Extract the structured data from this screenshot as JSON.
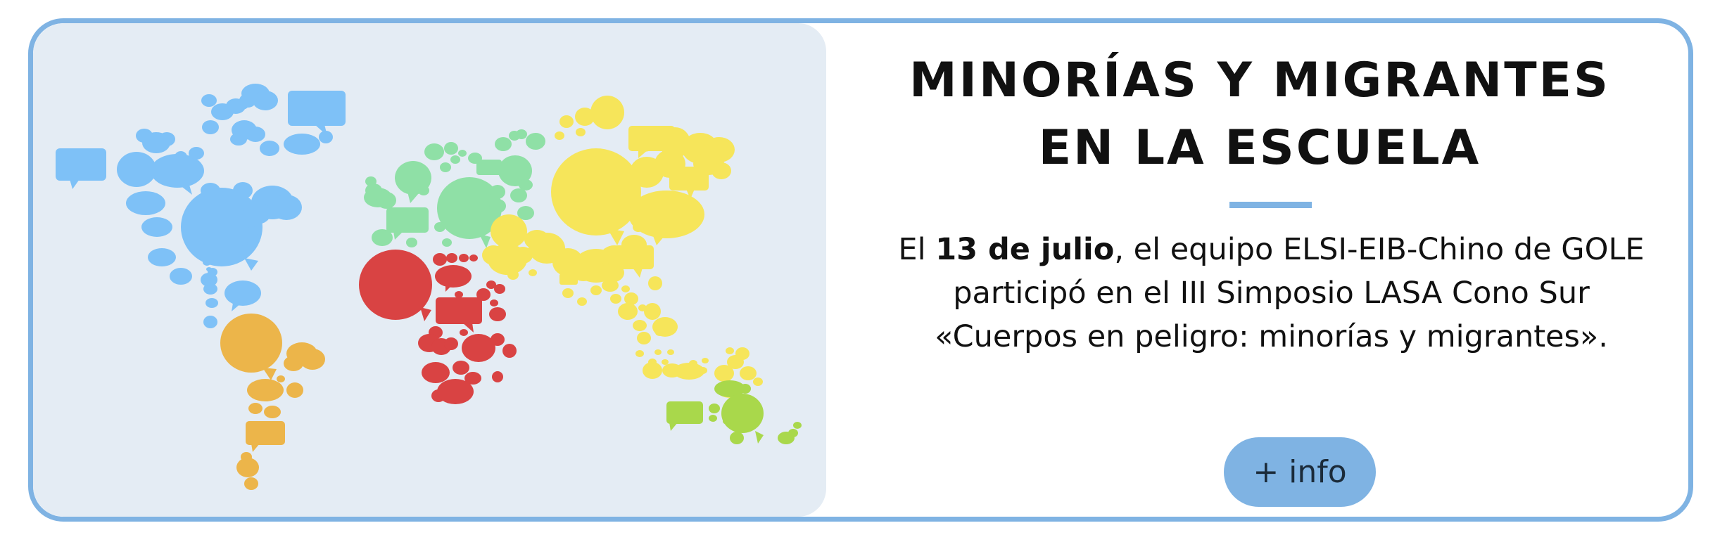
{
  "banner": {
    "title_line1": "MINORÍAS Y MIGRANTES",
    "title_line2": "EN LA ESCUELA",
    "desc_prefix": "El ",
    "desc_date": "13 de julio",
    "desc_rest": ", el equipo ELSI-EIB-Chino de GOLE participó en el III Simposio LASA Cono Sur «Cuerpos en peligro: minorías y migrantes».",
    "more_button": "+ info"
  },
  "map": {
    "icon": "world-map-speech-bubbles-icon",
    "colors": {
      "north_america": "#7ec1f7",
      "south_america": "#ecb54a",
      "europe": "#8fe0a6",
      "africa": "#d94343",
      "asia": "#f6e55a",
      "oceania": "#a9d84b",
      "panel_bg": "#e4ecf4"
    }
  },
  "colors": {
    "accent": "#7fb3e3",
    "text": "#111111"
  }
}
